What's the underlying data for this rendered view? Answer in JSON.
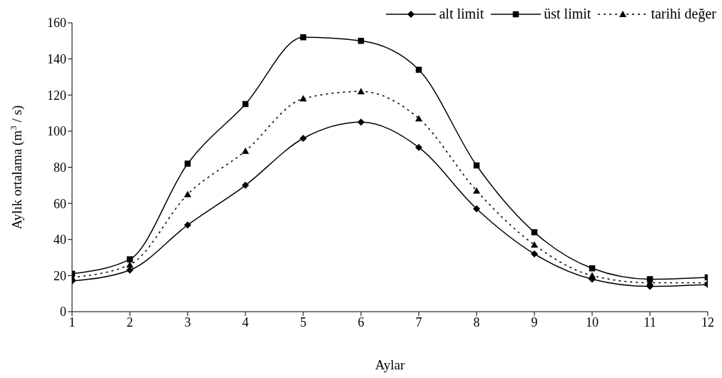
{
  "chart_data": {
    "type": "line",
    "xlabel": "Aylar",
    "ylabel": "Aylık ortalama (m$^{3}$ / s)",
    "x": [
      1,
      2,
      3,
      4,
      5,
      6,
      7,
      8,
      9,
      10,
      11,
      12
    ],
    "series": [
      {
        "name": "alt limit",
        "color": "#000000",
        "marker": "diamond",
        "line_style": "solid",
        "values": [
          17,
          23,
          48,
          70,
          96,
          105,
          91,
          57,
          32,
          18,
          14,
          15
        ]
      },
      {
        "name": "üst limit",
        "color": "#000000",
        "marker": "square",
        "line_style": "solid",
        "values": [
          21,
          29,
          82,
          115,
          152,
          150,
          134,
          81,
          44,
          24,
          18,
          19
        ]
      },
      {
        "name": "tarihi değer",
        "color": "#000000",
        "marker": "triangle",
        "line_style": "dotted",
        "values": [
          19,
          26,
          65,
          89,
          118,
          122,
          107,
          67,
          37,
          20,
          16,
          16
        ]
      }
    ],
    "xlim": [
      1,
      12
    ],
    "xticks": [
      1,
      2,
      3,
      4,
      5,
      6,
      7,
      8,
      9,
      10,
      11,
      12
    ],
    "ylim": [
      0,
      160
    ],
    "yticks": [
      0,
      20,
      40,
      60,
      80,
      100,
      120,
      140,
      160
    ],
    "grid": false,
    "legend": "top right"
  }
}
